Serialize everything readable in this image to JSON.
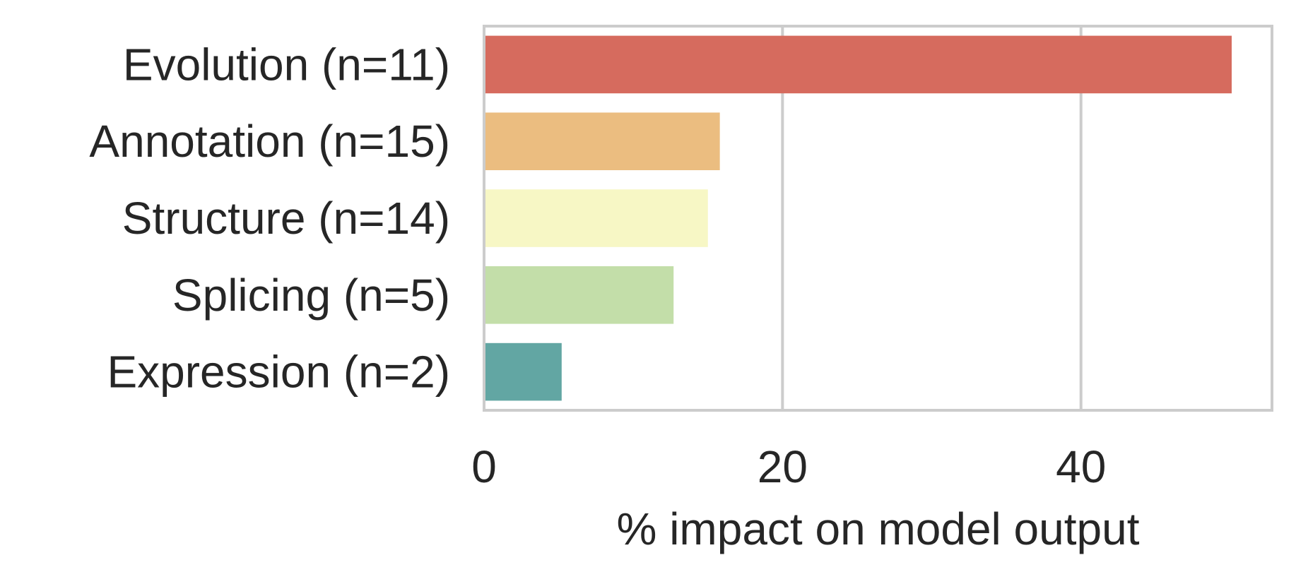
{
  "chart_data": {
    "type": "bar",
    "orientation": "horizontal",
    "categories": [
      "Evolution (n=11)",
      "Annotation (n=15)",
      "Structure (n=14)",
      "Splicing (n=5)",
      "Expression (n=2)"
    ],
    "values": [
      50.1,
      15.8,
      15.0,
      12.7,
      5.2
    ],
    "colors": [
      "#d66b5e",
      "#ebbd80",
      "#f7f7c5",
      "#c3dea9",
      "#62a6a3"
    ],
    "xlabel": "% impact on model output",
    "ylabel": "",
    "title": "",
    "xlim": [
      0,
      52.8
    ],
    "xticks": [
      0,
      20,
      40
    ],
    "xtick_labels": [
      "0",
      "20",
      "40"
    ],
    "grid": true,
    "legend": "none"
  }
}
